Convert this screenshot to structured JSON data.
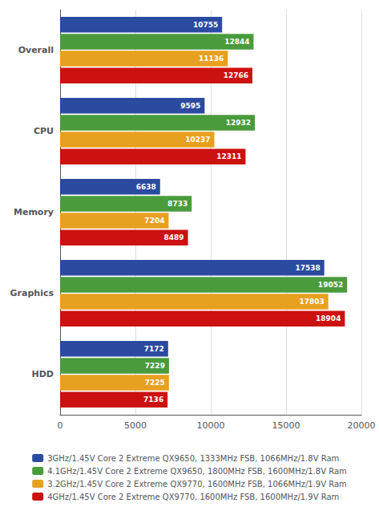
{
  "chart_data": {
    "type": "bar",
    "orientation": "horizontal",
    "categories": [
      "Overall",
      "CPU",
      "Memory",
      "Graphics",
      "HDD"
    ],
    "series": [
      {
        "name": "3GHz/1.45V Core 2 Extreme QX9650, 1333MHz FSB, 1066MHz/1.8V Ram",
        "color": "#2B4BA0",
        "values": [
          10755,
          9595,
          6638,
          17538,
          7172
        ]
      },
      {
        "name": "4.1GHz/1.45V Core 2 Extreme QX9650, 1800MHz FSB, 1600MHz/1.8V Ram",
        "color": "#4A9B3C",
        "values": [
          12844,
          12932,
          8733,
          19052,
          7229
        ]
      },
      {
        "name": "3.2GHz/1.45V Core 2 Extreme QX9770, 1600MHz FSB, 1066MHz/1.9V Ram",
        "color": "#E8A020",
        "values": [
          11136,
          10237,
          7204,
          17803,
          7225
        ]
      },
      {
        "name": "4GHz/1.45V Core 2 Extreme QX9770, 1600MHz FSB, 1600MHz/1.9V Ram",
        "color": "#CC1111",
        "values": [
          12766,
          12311,
          8489,
          18904,
          7136
        ]
      }
    ],
    "xlim": [
      0,
      20000
    ],
    "xticks": [
      0,
      5000,
      10000,
      15000,
      20000
    ],
    "grid": true,
    "data_labels": true,
    "legend": "bottom"
  }
}
